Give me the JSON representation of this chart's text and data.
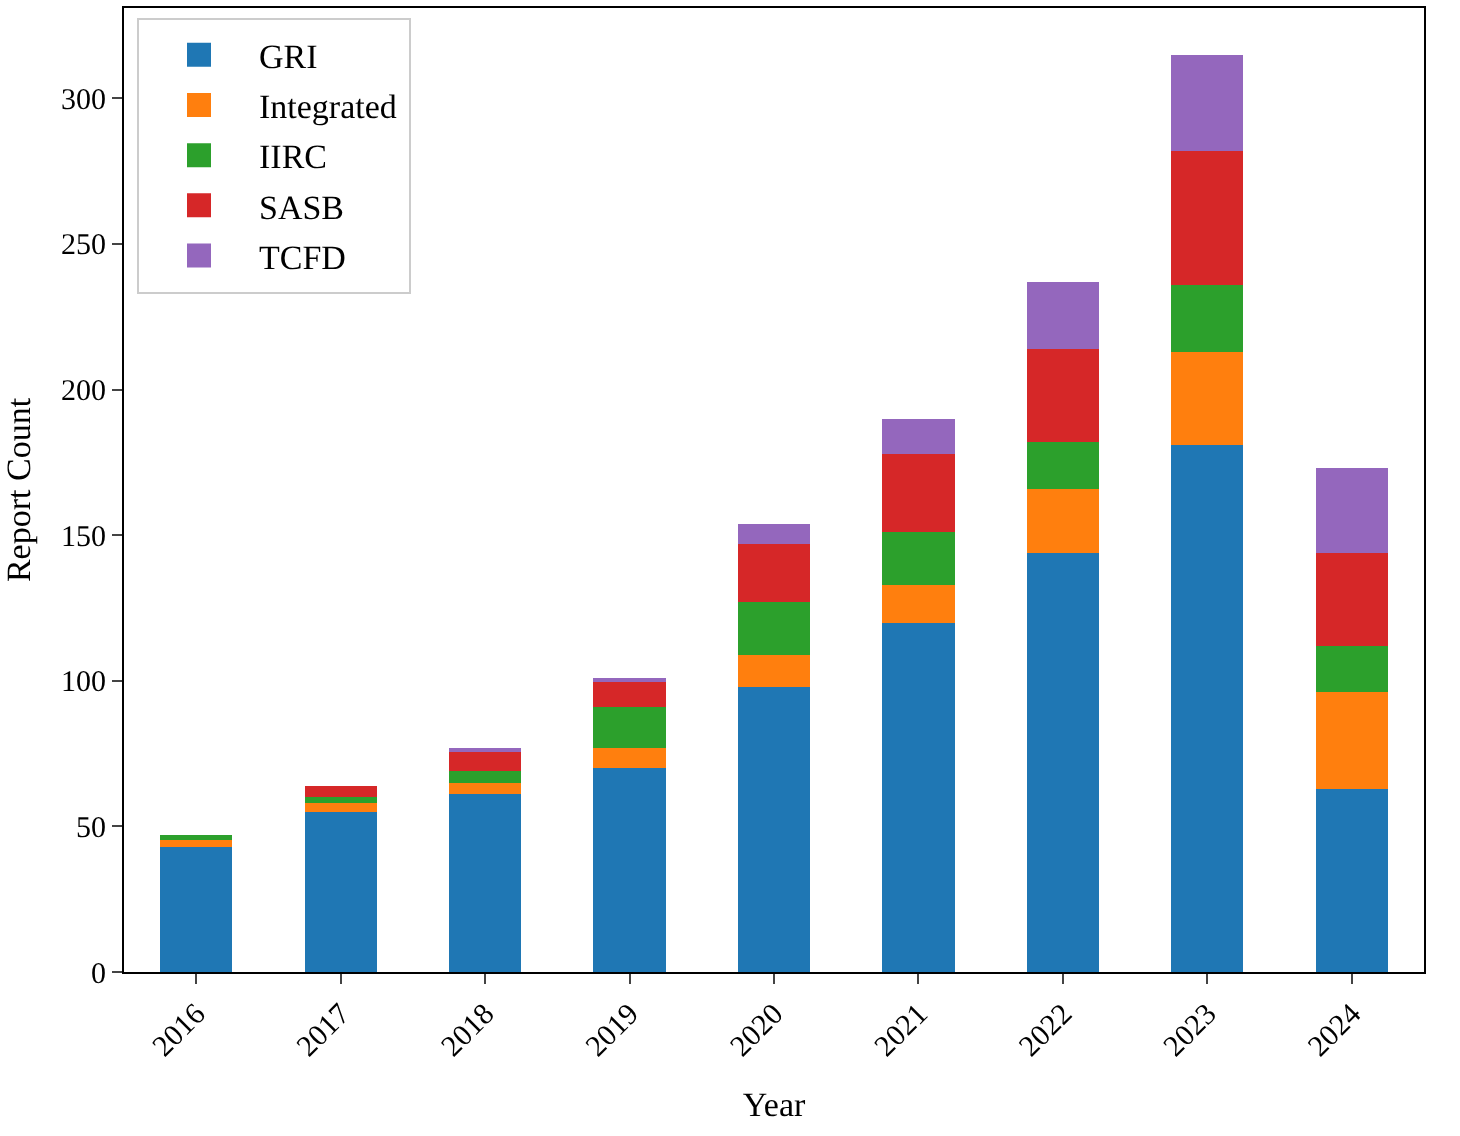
{
  "chart_data": {
    "type": "bar",
    "stacked": true,
    "xlabel": "Year",
    "ylabel": "Report Count",
    "categories": [
      "2016",
      "2017",
      "2018",
      "2019",
      "2020",
      "2021",
      "2022",
      "2023",
      "2024"
    ],
    "series": [
      {
        "name": "GRI",
        "color": "#1f77b4",
        "values": [
          43,
          55,
          61,
          70,
          98,
          120,
          144,
          181,
          63
        ]
      },
      {
        "name": "Integrated",
        "color": "#ff7f0e",
        "values": [
          3,
          3,
          4,
          7,
          11,
          13,
          22,
          32,
          33
        ]
      },
      {
        "name": "IIRC",
        "color": "#2ca02c",
        "values": [
          1,
          2,
          4,
          14,
          18,
          18,
          16,
          23,
          16
        ]
      },
      {
        "name": "SASB",
        "color": "#d62728",
        "values": [
          0,
          4,
          7,
          9,
          20,
          27,
          32,
          46,
          32
        ]
      },
      {
        "name": "TCFD",
        "color": "#9467bd",
        "values": [
          0,
          0,
          1,
          1,
          7,
          12,
          23,
          33,
          29
        ]
      }
    ],
    "ylim": [
      0,
      331
    ],
    "yticks": [
      0,
      50,
      100,
      150,
      200,
      250,
      300
    ],
    "legend": "top left"
  }
}
